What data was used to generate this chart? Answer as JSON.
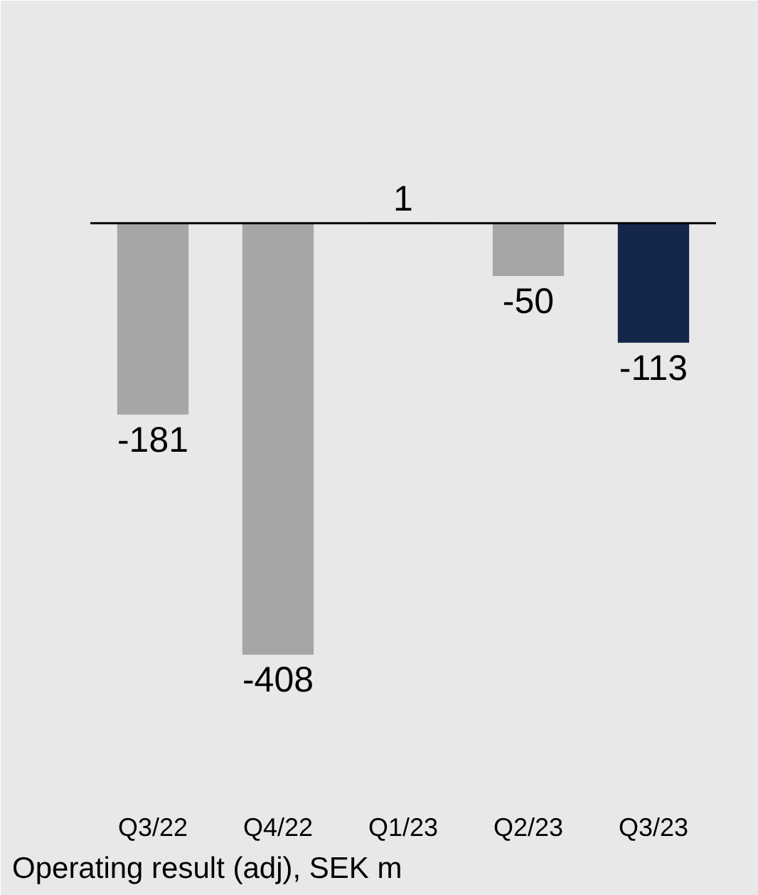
{
  "chart_data": {
    "type": "bar",
    "categories": [
      "Q3/22",
      "Q4/22",
      "Q1/23",
      "Q2/23",
      "Q3/23"
    ],
    "values": [
      -181,
      -408,
      1,
      -50,
      -113
    ],
    "colors": [
      "#a6a6a6",
      "#a6a6a6",
      "#a6a6a6",
      "#a6a6a6",
      "#14264a"
    ],
    "data_labels": true,
    "annotations": [
      "Operating result (adj), SEK m"
    ]
  }
}
